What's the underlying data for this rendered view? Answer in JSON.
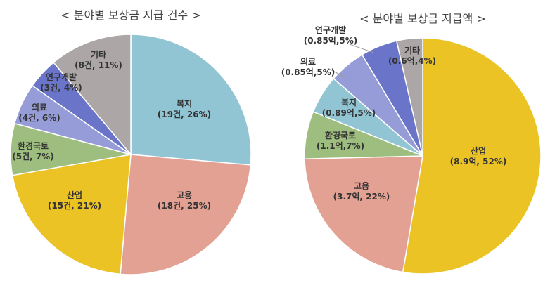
{
  "chart_data": [
    {
      "type": "pie",
      "title": "< 분야별 보상금 지급 건수 >",
      "series": [
        {
          "name": "",
          "slices": [
            {
              "category": "복지",
              "value": 19,
              "percent": 26,
              "label_line1": "복지",
              "label_line2": "(19건, 26%)",
              "color": "#92C5D4"
            },
            {
              "category": "고용",
              "value": 18,
              "percent": 25,
              "label_line1": "고용",
              "label_line2": "(18건, 25%)",
              "color": "#E3A193"
            },
            {
              "category": "산업",
              "value": 15,
              "percent": 21,
              "label_line1": "산업",
              "label_line2": "(15건, 21%)",
              "color": "#EBC325"
            },
            {
              "category": "환경국토",
              "value": 5,
              "percent": 7,
              "label_line1": "환경국토",
              "label_line2": "(5건, 7%)",
              "color": "#9DBE7E"
            },
            {
              "category": "의료",
              "value": 4,
              "percent": 6,
              "label_line1": "의료",
              "label_line2": "(4건, 6%)",
              "color": "#959CD7"
            },
            {
              "category": "연구개발",
              "value": 3,
              "percent": 4,
              "label_line1": "연구개발",
              "label_line2": "(3건, 4%)",
              "color": "#6A74C8"
            },
            {
              "category": "기타",
              "value": 8,
              "percent": 11,
              "label_line1": "기타",
              "label_line2": "(8건, 11%)",
              "color": "#ACA7A6"
            }
          ]
        }
      ],
      "legend": "none"
    },
    {
      "type": "pie",
      "title": "< 분야별 보상금 지급액 >",
      "series": [
        {
          "name": "",
          "slices": [
            {
              "category": "산업",
              "value": 8.9,
              "percent": 52,
              "label_line1": "산업",
              "label_line2": "(8.9억, 52%)",
              "color": "#EBC325"
            },
            {
              "category": "고용",
              "value": 3.7,
              "percent": 22,
              "label_line1": "고용",
              "label_line2": "(3.7억, 22%)",
              "color": "#E3A193"
            },
            {
              "category": "환경국토",
              "value": 1.1,
              "percent": 7,
              "label_line1": "환경국토",
              "label_line2": "(1.1억,7%)",
              "color": "#9DBE7E"
            },
            {
              "category": "복지",
              "value": 0.89,
              "percent": 5,
              "label_line1": "복지",
              "label_line2": "(0.89억,5%)",
              "color": "#92C5D4"
            },
            {
              "category": "의료",
              "value": 0.85,
              "percent": 5,
              "label_line1": "의료",
              "label_line2": "(0.85억,5%)",
              "color": "#959CD7"
            },
            {
              "category": "연구개발",
              "value": 0.85,
              "percent": 5,
              "label_line1": "연구개발",
              "label_line2": "(0.85억,5%)",
              "color": "#6A74C8"
            },
            {
              "category": "기타",
              "value": 0.6,
              "percent": 4,
              "label_line1": "기타",
              "label_line2": "(0.6억,4%)",
              "color": "#ACA7A6"
            }
          ]
        }
      ],
      "legend": "none"
    }
  ]
}
